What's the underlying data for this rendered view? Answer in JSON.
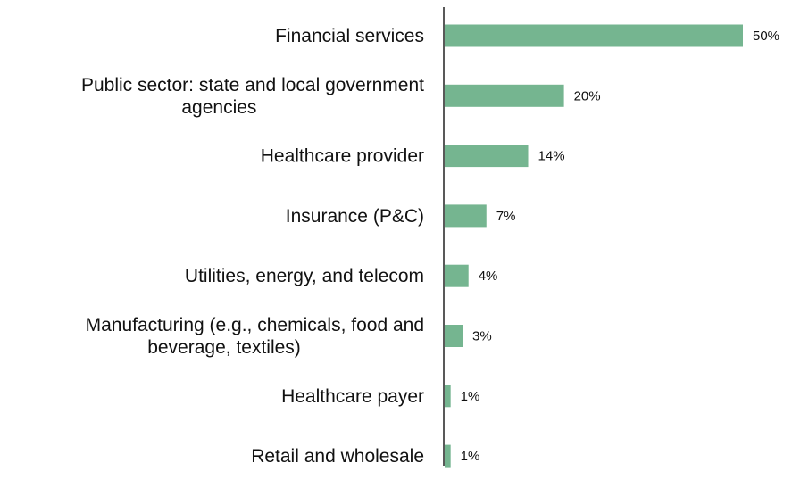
{
  "chart_data": {
    "type": "bar",
    "orientation": "horizontal",
    "categories": [
      [
        "Financial services"
      ],
      [
        "Public sector: state and local government",
        "agencies"
      ],
      [
        "Healthcare provider"
      ],
      [
        "Insurance (P&C)"
      ],
      [
        "Utilities, energy, and telecom"
      ],
      [
        "Manufacturing (e.g., chemicals, food and",
        "beverage, textiles)"
      ],
      [
        "Healthcare payer"
      ],
      [
        "Retail and wholesale"
      ]
    ],
    "values": [
      50,
      20,
      14,
      7,
      4,
      3,
      1,
      1
    ],
    "value_labels": [
      "50%",
      "20%",
      "14%",
      "7%",
      "4%",
      "3%",
      "1%",
      "1%"
    ],
    "xlim": [
      0,
      50
    ],
    "grid": false,
    "legend": "none",
    "bar_color": "#75b590",
    "axis_color": "#222222"
  }
}
